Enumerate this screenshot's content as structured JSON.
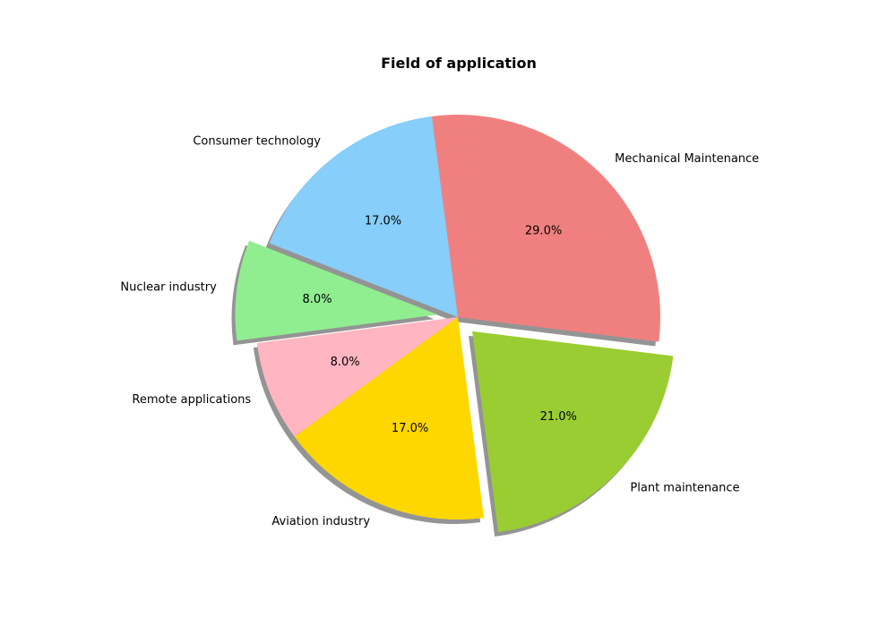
{
  "chart_data": {
    "type": "pie",
    "title": "Field of application",
    "slices": [
      {
        "label": "Mechanical Maintenance",
        "value": 29.0,
        "pct_label": "29.0%",
        "color": "#f08080",
        "exploded": false
      },
      {
        "label": "Consumer technology",
        "value": 17.0,
        "pct_label": "17.0%",
        "color": "#87cefa",
        "exploded": false
      },
      {
        "label": "Nuclear industry",
        "value": 8.0,
        "pct_label": "8.0%",
        "color": "#90ee90",
        "exploded": true
      },
      {
        "label": "Remote applications",
        "value": 8.0,
        "pct_label": "8.0%",
        "color": "#ffb6c1",
        "exploded": false
      },
      {
        "label": "Aviation industry",
        "value": 17.0,
        "pct_label": "17.0%",
        "color": "#ffd700",
        "exploded": false
      },
      {
        "label": "Plant maintenance",
        "value": 21.0,
        "pct_label": "21.0%",
        "color": "#9acd32",
        "exploded": true
      }
    ],
    "shadow": true
  }
}
